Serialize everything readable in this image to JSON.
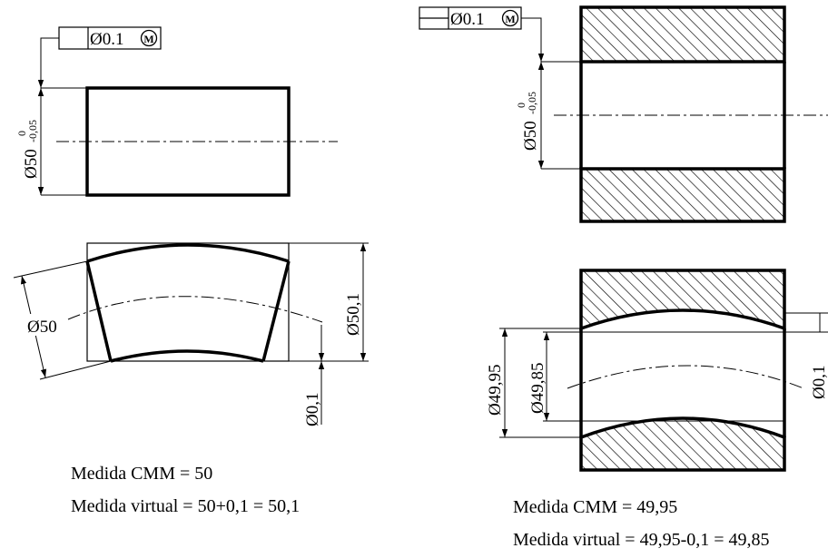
{
  "shaft": {
    "fcf": {
      "symbol": "Ø0.1",
      "modifier": "M"
    },
    "diameter": "Ø50",
    "tol_upper": "0",
    "tol_lower": "-0,05",
    "bent_diameter": "Ø50",
    "envelope": "Ø50,1",
    "straightness": "Ø0,1",
    "caption_cmm": "Medida CMM = 50",
    "caption_virtual": "Medida virtual = 50+0,1 = 50,1"
  },
  "hole": {
    "fcf": {
      "symbol": "Ø0.1",
      "modifier": "M"
    },
    "diameter": "Ø50",
    "tol_upper": "0",
    "tol_lower": "-0,05",
    "bore_diameter": "Ø49,95",
    "virtual_diameter": "Ø49,85",
    "straightness": "Ø0,1",
    "caption_cmm": "Medida CMM = 49,95",
    "caption_virtual": "Medida virtual = 49,95-0,1 = 49,85"
  }
}
